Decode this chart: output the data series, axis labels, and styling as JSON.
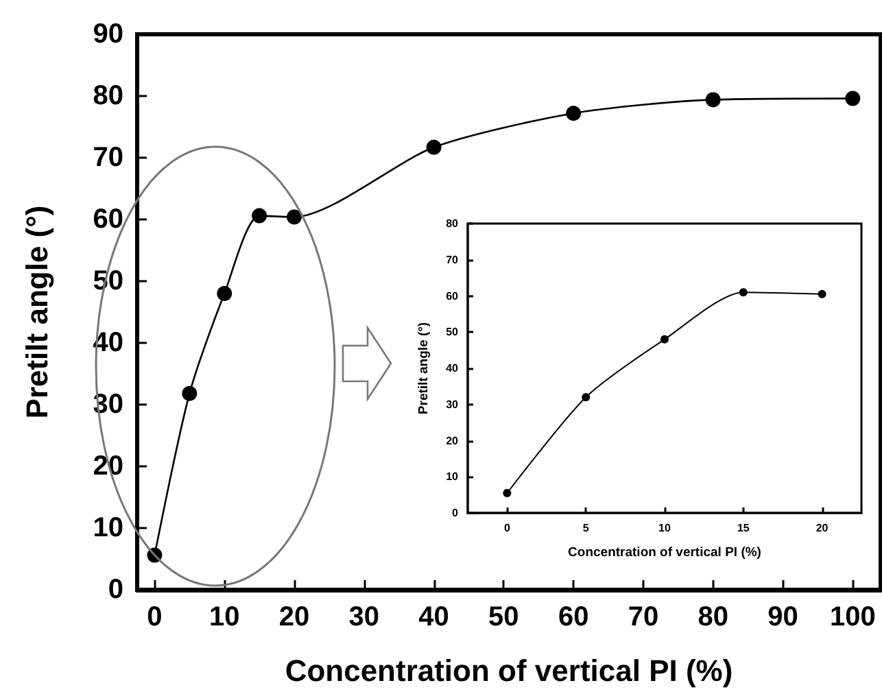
{
  "chart_data": [
    {
      "type": "line",
      "xlabel": "Concentration of vertical PI (%)",
      "ylabel": "Pretilt angle (°)",
      "x": [
        0,
        5,
        10,
        15,
        20,
        40,
        60,
        80,
        100
      ],
      "series": [
        {
          "color": "#000000",
          "values": [
            5.6,
            31.8,
            48,
            60.6,
            60.4,
            71.7,
            77.2,
            79.4,
            79.6
          ]
        }
      ],
      "xlim": [
        -2.5,
        104
      ],
      "ylim": [
        0,
        90
      ],
      "xticks": [
        0,
        10,
        20,
        30,
        40,
        50,
        60,
        70,
        80,
        90,
        100
      ],
      "yticks": [
        0,
        10,
        20,
        30,
        40,
        50,
        60,
        70,
        80,
        90
      ],
      "marker": "circle"
    },
    {
      "type": "line",
      "xlabel": "Concentration of vertical PI (%)",
      "ylabel": "Pretilt angle (°)",
      "x": [
        0,
        5,
        10,
        15,
        20
      ],
      "series": [
        {
          "color": "#000000",
          "values": [
            5.5,
            32,
            48,
            61,
            60.5
          ]
        }
      ],
      "xlim": [
        -2.5,
        22.5
      ],
      "ylim": [
        0,
        80
      ],
      "xticks": [
        0,
        5,
        10,
        15,
        20
      ],
      "yticks": [
        0,
        10,
        20,
        30,
        40,
        50,
        60,
        70,
        80
      ],
      "marker": "circle"
    }
  ]
}
